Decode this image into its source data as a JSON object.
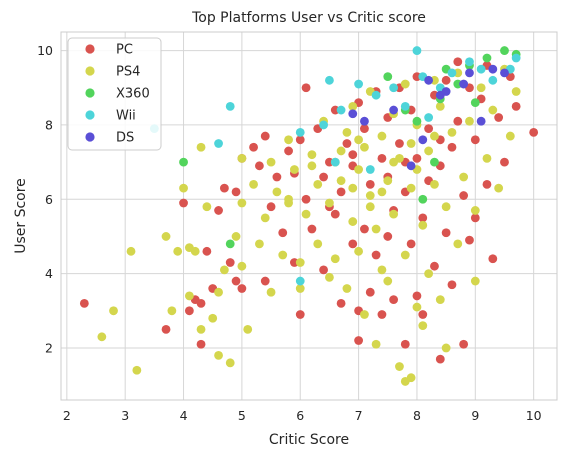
{
  "chart_data": {
    "type": "scatter",
    "title": "Top Platforms User vs Critic score",
    "xlabel": "Critic Score",
    "ylabel": "User Score",
    "xlim": [
      1.9,
      10.4
    ],
    "ylim": [
      0.6,
      10.5
    ],
    "xticks": [
      2,
      3,
      4,
      5,
      6,
      7,
      8,
      9,
      10
    ],
    "yticks": [
      2,
      4,
      6,
      8,
      10
    ],
    "grid": true,
    "legend_position": "top-left",
    "series": [
      {
        "name": "PC",
        "color": "#d9534f",
        "points": [
          [
            2.3,
            3.2
          ],
          [
            3.7,
            2.5
          ],
          [
            4.0,
            5.9
          ],
          [
            4.1,
            3.0
          ],
          [
            4.2,
            3.3
          ],
          [
            4.3,
            2.1
          ],
          [
            4.3,
            3.2
          ],
          [
            4.4,
            4.6
          ],
          [
            4.5,
            3.6
          ],
          [
            4.6,
            5.7
          ],
          [
            4.7,
            6.3
          ],
          [
            4.8,
            4.3
          ],
          [
            4.9,
            3.8
          ],
          [
            4.9,
            6.2
          ],
          [
            5.0,
            3.6
          ],
          [
            5.0,
            7.1
          ],
          [
            5.2,
            7.4
          ],
          [
            5.3,
            6.9
          ],
          [
            5.4,
            3.8
          ],
          [
            5.4,
            7.7
          ],
          [
            5.5,
            5.8
          ],
          [
            5.6,
            6.6
          ],
          [
            5.7,
            5.1
          ],
          [
            5.8,
            7.3
          ],
          [
            5.9,
            4.3
          ],
          [
            6.0,
            2.9
          ],
          [
            6.0,
            7.6
          ],
          [
            6.1,
            9.0
          ],
          [
            6.1,
            6.0
          ],
          [
            6.2,
            5.2
          ],
          [
            6.3,
            7.9
          ],
          [
            6.4,
            4.1
          ],
          [
            6.4,
            6.6
          ],
          [
            6.5,
            7.0
          ],
          [
            6.6,
            5.6
          ],
          [
            6.6,
            8.4
          ],
          [
            6.7,
            6.2
          ],
          [
            6.7,
            3.2
          ],
          [
            6.8,
            7.5
          ],
          [
            6.9,
            6.9
          ],
          [
            6.9,
            4.8
          ],
          [
            7.0,
            2.2
          ],
          [
            7.0,
            3.0
          ],
          [
            7.0,
            8.6
          ],
          [
            7.1,
            5.2
          ],
          [
            7.1,
            7.9
          ],
          [
            7.2,
            3.5
          ],
          [
            7.2,
            6.4
          ],
          [
            7.3,
            8.9
          ],
          [
            7.3,
            4.5
          ],
          [
            7.4,
            7.1
          ],
          [
            7.4,
            2.9
          ],
          [
            7.5,
            6.6
          ],
          [
            7.5,
            8.2
          ],
          [
            7.6,
            3.3
          ],
          [
            7.6,
            5.7
          ],
          [
            7.7,
            7.5
          ],
          [
            7.7,
            9.0
          ],
          [
            7.8,
            2.1
          ],
          [
            7.8,
            6.2
          ],
          [
            7.9,
            4.8
          ],
          [
            7.9,
            8.4
          ],
          [
            8.0,
            3.4
          ],
          [
            8.0,
            7.1
          ],
          [
            8.0,
            9.3
          ],
          [
            8.1,
            5.5
          ],
          [
            8.1,
            2.9
          ],
          [
            8.2,
            7.9
          ],
          [
            8.2,
            6.5
          ],
          [
            8.3,
            4.2
          ],
          [
            8.3,
            8.8
          ],
          [
            8.4,
            1.7
          ],
          [
            8.4,
            6.9
          ],
          [
            8.5,
            5.1
          ],
          [
            8.5,
            9.2
          ],
          [
            8.6,
            7.4
          ],
          [
            8.6,
            3.7
          ],
          [
            8.7,
            8.1
          ],
          [
            8.8,
            2.1
          ],
          [
            8.8,
            6.1
          ],
          [
            8.9,
            9.0
          ],
          [
            8.9,
            4.9
          ],
          [
            9.0,
            7.6
          ],
          [
            9.0,
            5.5
          ],
          [
            9.1,
            8.7
          ],
          [
            9.2,
            6.4
          ],
          [
            9.2,
            9.6
          ],
          [
            9.3,
            4.4
          ],
          [
            9.4,
            8.2
          ],
          [
            9.5,
            7.0
          ],
          [
            9.6,
            9.3
          ],
          [
            9.7,
            8.5
          ],
          [
            10.0,
            7.8
          ],
          [
            8.7,
            9.7
          ],
          [
            7.5,
            5.0
          ],
          [
            6.9,
            7.2
          ],
          [
            5.9,
            6.7
          ],
          [
            7.8,
            7.0
          ],
          [
            8.4,
            7.6
          ],
          [
            6.5,
            5.8
          ]
        ]
      },
      {
        "name": "PS4",
        "color": "#d4d64d",
        "points": [
          [
            2.6,
            2.3
          ],
          [
            2.8,
            3.0
          ],
          [
            3.1,
            4.6
          ],
          [
            3.2,
            1.4
          ],
          [
            3.7,
            5.0
          ],
          [
            3.8,
            3.0
          ],
          [
            3.9,
            4.6
          ],
          [
            4.0,
            6.3
          ],
          [
            4.1,
            3.4
          ],
          [
            4.1,
            4.7
          ],
          [
            4.2,
            4.6
          ],
          [
            4.3,
            2.5
          ],
          [
            4.3,
            7.4
          ],
          [
            4.4,
            5.8
          ],
          [
            4.5,
            2.8
          ],
          [
            4.6,
            1.8
          ],
          [
            4.6,
            3.5
          ],
          [
            4.7,
            4.1
          ],
          [
            4.8,
            1.6
          ],
          [
            4.9,
            5.0
          ],
          [
            5.0,
            4.2
          ],
          [
            5.0,
            5.9
          ],
          [
            5.0,
            7.1
          ],
          [
            5.1,
            2.5
          ],
          [
            5.2,
            6.4
          ],
          [
            5.3,
            4.8
          ],
          [
            5.4,
            5.5
          ],
          [
            5.5,
            7.0
          ],
          [
            5.5,
            3.5
          ],
          [
            5.6,
            6.2
          ],
          [
            5.7,
            4.5
          ],
          [
            5.8,
            5.9
          ],
          [
            5.8,
            7.6
          ],
          [
            5.9,
            6.8
          ],
          [
            6.0,
            4.3
          ],
          [
            6.0,
            3.6
          ],
          [
            6.1,
            5.6
          ],
          [
            6.2,
            7.2
          ],
          [
            6.3,
            6.4
          ],
          [
            6.3,
            4.8
          ],
          [
            6.4,
            8.1
          ],
          [
            6.5,
            3.9
          ],
          [
            6.5,
            5.9
          ],
          [
            6.6,
            7.0
          ],
          [
            6.6,
            4.4
          ],
          [
            6.7,
            6.5
          ],
          [
            6.8,
            7.8
          ],
          [
            6.8,
            3.6
          ],
          [
            6.9,
            5.4
          ],
          [
            6.9,
            8.5
          ],
          [
            7.0,
            6.8
          ],
          [
            7.0,
            4.6
          ],
          [
            7.1,
            7.4
          ],
          [
            7.1,
            2.9
          ],
          [
            7.2,
            6.1
          ],
          [
            7.2,
            8.9
          ],
          [
            7.3,
            5.2
          ],
          [
            7.3,
            2.1
          ],
          [
            7.4,
            7.7
          ],
          [
            7.4,
            4.1
          ],
          [
            7.5,
            6.5
          ],
          [
            7.5,
            3.8
          ],
          [
            7.6,
            8.3
          ],
          [
            7.6,
            5.6
          ],
          [
            7.7,
            1.5
          ],
          [
            7.7,
            7.1
          ],
          [
            7.8,
            4.5
          ],
          [
            7.8,
            9.1
          ],
          [
            7.9,
            1.2
          ],
          [
            7.9,
            6.3
          ],
          [
            8.0,
            3.1
          ],
          [
            8.0,
            8.0
          ],
          [
            8.1,
            5.3
          ],
          [
            8.1,
            2.6
          ],
          [
            8.2,
            7.3
          ],
          [
            8.2,
            4.0
          ],
          [
            8.3,
            9.2
          ],
          [
            8.3,
            6.4
          ],
          [
            8.4,
            3.3
          ],
          [
            8.4,
            8.5
          ],
          [
            8.5,
            5.8
          ],
          [
            8.5,
            2.0
          ],
          [
            8.6,
            7.8
          ],
          [
            8.7,
            4.8
          ],
          [
            8.7,
            9.4
          ],
          [
            8.8,
            6.6
          ],
          [
            8.9,
            8.1
          ],
          [
            9.0,
            5.7
          ],
          [
            9.0,
            3.8
          ],
          [
            9.1,
            9.0
          ],
          [
            9.2,
            7.1
          ],
          [
            9.3,
            8.4
          ],
          [
            9.4,
            6.3
          ],
          [
            9.5,
            9.5
          ],
          [
            9.6,
            7.7
          ],
          [
            9.7,
            8.9
          ],
          [
            7.8,
            1.1
          ],
          [
            6.2,
            6.9
          ],
          [
            7.0,
            7.6
          ],
          [
            8.0,
            6.8
          ],
          [
            7.4,
            6.2
          ],
          [
            6.7,
            7.3
          ],
          [
            7.6,
            7.0
          ],
          [
            8.3,
            7.7
          ],
          [
            5.8,
            6.0
          ],
          [
            7.2,
            5.8
          ],
          [
            6.9,
            6.3
          ],
          [
            7.9,
            7.5
          ]
        ]
      },
      {
        "name": "X360",
        "color": "#52d45c",
        "points": [
          [
            4.0,
            7.0
          ],
          [
            4.8,
            4.8
          ],
          [
            7.5,
            9.3
          ],
          [
            8.0,
            8.1
          ],
          [
            8.3,
            7.0
          ],
          [
            8.5,
            9.5
          ],
          [
            8.7,
            9.1
          ],
          [
            9.0,
            8.6
          ],
          [
            9.2,
            9.8
          ],
          [
            9.5,
            10.0
          ],
          [
            8.1,
            6.0
          ],
          [
            7.8,
            8.4
          ],
          [
            8.9,
            9.6
          ],
          [
            9.7,
            9.9
          ],
          [
            8.4,
            8.7
          ]
        ]
      },
      {
        "name": "Wii",
        "color": "#4dd4d9",
        "points": [
          [
            3.5,
            7.9
          ],
          [
            4.6,
            7.5
          ],
          [
            4.8,
            8.5
          ],
          [
            6.0,
            7.8
          ],
          [
            6.0,
            3.8
          ],
          [
            6.4,
            8.0
          ],
          [
            6.5,
            9.2
          ],
          [
            6.7,
            8.4
          ],
          [
            7.0,
            9.1
          ],
          [
            7.3,
            8.8
          ],
          [
            7.6,
            9.0
          ],
          [
            7.8,
            8.5
          ],
          [
            8.0,
            10.0
          ],
          [
            8.1,
            9.3
          ],
          [
            8.4,
            9.0
          ],
          [
            8.6,
            9.4
          ],
          [
            8.9,
            9.7
          ],
          [
            9.1,
            9.5
          ],
          [
            9.3,
            9.2
          ],
          [
            9.6,
            9.5
          ],
          [
            9.7,
            9.8
          ],
          [
            6.6,
            7.0
          ],
          [
            7.2,
            6.8
          ],
          [
            8.2,
            8.2
          ]
        ]
      },
      {
        "name": "DS",
        "color": "#5a4fd6",
        "points": [
          [
            7.1,
            8.1
          ],
          [
            7.6,
            8.4
          ],
          [
            7.9,
            6.9
          ],
          [
            8.1,
            7.6
          ],
          [
            8.2,
            9.2
          ],
          [
            8.4,
            8.8
          ],
          [
            8.5,
            8.9
          ],
          [
            8.9,
            9.4
          ],
          [
            9.1,
            8.1
          ],
          [
            9.3,
            9.5
          ],
          [
            9.5,
            9.4
          ],
          [
            6.9,
            8.3
          ],
          [
            8.8,
            9.1
          ]
        ]
      }
    ]
  }
}
